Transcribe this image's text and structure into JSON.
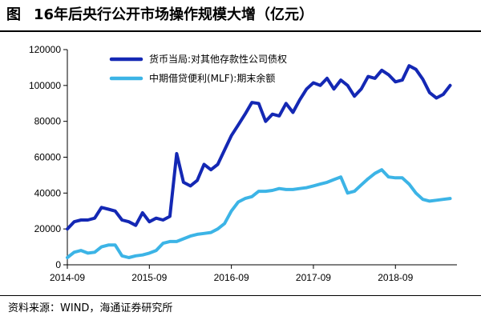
{
  "figure": {
    "prefix": "图",
    "title": "16年后央行公开市场操作规模大增（亿元）",
    "source": "资料来源：WIND，海通证券研究所"
  },
  "colors": {
    "series_1": "#1428b4",
    "series_2": "#3cb4e6"
  },
  "chart_data": {
    "type": "line",
    "title": "16年后央行公开市场操作规模大增（亿元）",
    "xlabel": "",
    "ylabel": "",
    "ylim": [
      0,
      120000
    ],
    "yticks": [
      0,
      20000,
      40000,
      60000,
      80000,
      100000,
      120000
    ],
    "xlim": [
      "2014-09",
      "2019-06"
    ],
    "xticks": [
      "2014-09",
      "2015-09",
      "2016-09",
      "2017-09",
      "2018-09"
    ],
    "grid": false,
    "legend": "top-left",
    "x": [
      "2014-09",
      "2014-10",
      "2014-11",
      "2014-12",
      "2015-01",
      "2015-02",
      "2015-03",
      "2015-04",
      "2015-05",
      "2015-06",
      "2015-07",
      "2015-08",
      "2015-09",
      "2015-10",
      "2015-11",
      "2015-12",
      "2016-01",
      "2016-02",
      "2016-03",
      "2016-04",
      "2016-05",
      "2016-06",
      "2016-07",
      "2016-08",
      "2016-09",
      "2016-10",
      "2016-11",
      "2016-12",
      "2017-01",
      "2017-02",
      "2017-03",
      "2017-04",
      "2017-05",
      "2017-06",
      "2017-07",
      "2017-08",
      "2017-09",
      "2017-10",
      "2017-11",
      "2017-12",
      "2018-01",
      "2018-02",
      "2018-03",
      "2018-04",
      "2018-05",
      "2018-06",
      "2018-07",
      "2018-08",
      "2018-09",
      "2018-10",
      "2018-11",
      "2018-12",
      "2019-01",
      "2019-02",
      "2019-03",
      "2019-04",
      "2019-05"
    ],
    "series": [
      {
        "name": "货币当局:对其他存款性公司债权",
        "color": "#1428b4",
        "values": [
          20000,
          24000,
          25000,
          25000,
          26000,
          32000,
          31000,
          30000,
          25000,
          24000,
          22000,
          29000,
          24000,
          26000,
          25000,
          27000,
          62000,
          46000,
          44000,
          47000,
          56000,
          53000,
          56000,
          64000,
          72000,
          78000,
          84000,
          90500,
          90000,
          80000,
          84000,
          83000,
          90000,
          85000,
          92000,
          98000,
          101500,
          100000,
          104000,
          98000,
          103000,
          100000,
          94000,
          98000,
          105000,
          104000,
          108500,
          106000,
          102000,
          103000,
          111000,
          109000,
          103500,
          96000,
          93000,
          95000,
          100000
        ]
      },
      {
        "name": "中期借贷便利(MLF):期末余额",
        "color": "#3cb4e6",
        "values": [
          4000,
          7000,
          8000,
          6500,
          7000,
          10000,
          11000,
          11000,
          5000,
          4000,
          5000,
          5500,
          6500,
          8000,
          12000,
          13000,
          13000,
          14500,
          16000,
          17000,
          17500,
          18000,
          20000,
          23000,
          30000,
          35000,
          37000,
          38000,
          41000,
          41000,
          41500,
          42500,
          42000,
          42000,
          42500,
          43000,
          44000,
          45000,
          46000,
          47500,
          49000,
          40000,
          41000,
          44500,
          48000,
          51000,
          53000,
          49000,
          48500,
          48500,
          45000,
          40000,
          36500,
          35500,
          36000,
          36500,
          37000
        ]
      }
    ]
  }
}
